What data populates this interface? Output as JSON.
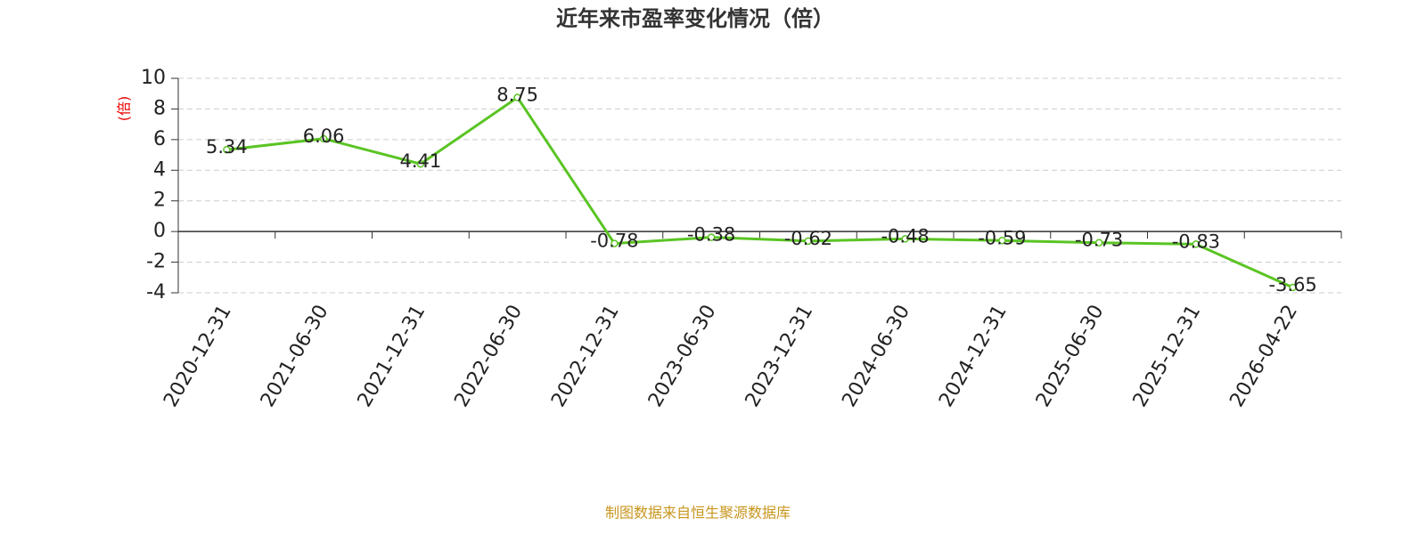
{
  "chart_data": {
    "type": "line",
    "title": "近年来市盈率变化情况（倍）",
    "y_axis_label": "(倍)",
    "source": "制图数据来自恒生聚源数据库",
    "categories": [
      "2020-12-31",
      "2021-06-30",
      "2021-12-31",
      "2022-06-30",
      "2022-12-31",
      "2023-06-30",
      "2023-12-31",
      "2024-06-30",
      "2024-12-31",
      "2025-06-30",
      "2025-12-31",
      "2026-04-22"
    ],
    "series": [
      {
        "name": "市盈率",
        "color": "#5ac423",
        "values": [
          5.34,
          6.06,
          4.41,
          8.75,
          -0.78,
          -0.38,
          -0.62,
          -0.48,
          -0.59,
          -0.73,
          -0.83,
          -3.65
        ]
      }
    ],
    "ylim": [
      -4,
      10
    ],
    "yticks": [
      -4,
      -2,
      0,
      2,
      4,
      6,
      8,
      10
    ],
    "grid": true
  }
}
